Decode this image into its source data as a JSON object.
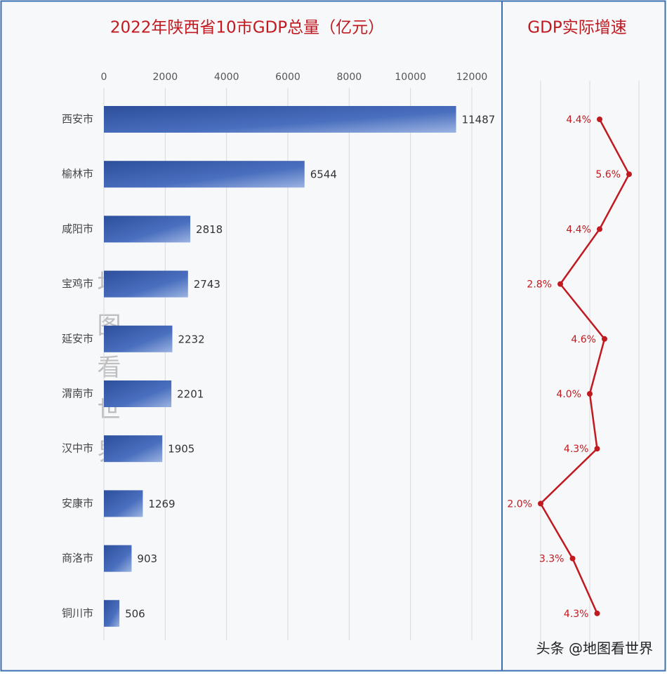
{
  "chart_data": [
    {
      "type": "bar",
      "orientation": "horizontal",
      "title": "2022年陕西省10市GDP总量（亿元）",
      "categories": [
        "西安市",
        "榆林市",
        "咸阳市",
        "宝鸡市",
        "延安市",
        "渭南市",
        "汉中市",
        "安康市",
        "商洛市",
        "铜川市"
      ],
      "values": [
        11487,
        6544,
        2818,
        2743,
        2232,
        2201,
        1905,
        1269,
        903,
        506
      ],
      "color": "#4a6fbe",
      "xlim": [
        0,
        12000
      ],
      "xticks": [
        0,
        2000,
        4000,
        6000,
        8000,
        10000,
        12000
      ],
      "grid": true
    },
    {
      "type": "line",
      "orientation": "vertical",
      "title": "GDP实际增速",
      "values": [
        4.4,
        5.6,
        4.4,
        2.8,
        4.6,
        4.0,
        4.3,
        2.0,
        3.3,
        4.3
      ],
      "value_labels": [
        "4.4%",
        "5.6%",
        "4.4%",
        "2.8%",
        "4.6%",
        "4.0%",
        "4.3%",
        "2.0%",
        "3.3%",
        "4.3%"
      ],
      "color": "#c0191f",
      "xlim": [
        1.2,
        6
      ],
      "xticks": [
        2,
        4,
        6
      ],
      "grid": true
    }
  ],
  "watermark": "地图看世界",
  "credit": "头条 @地图看世界"
}
